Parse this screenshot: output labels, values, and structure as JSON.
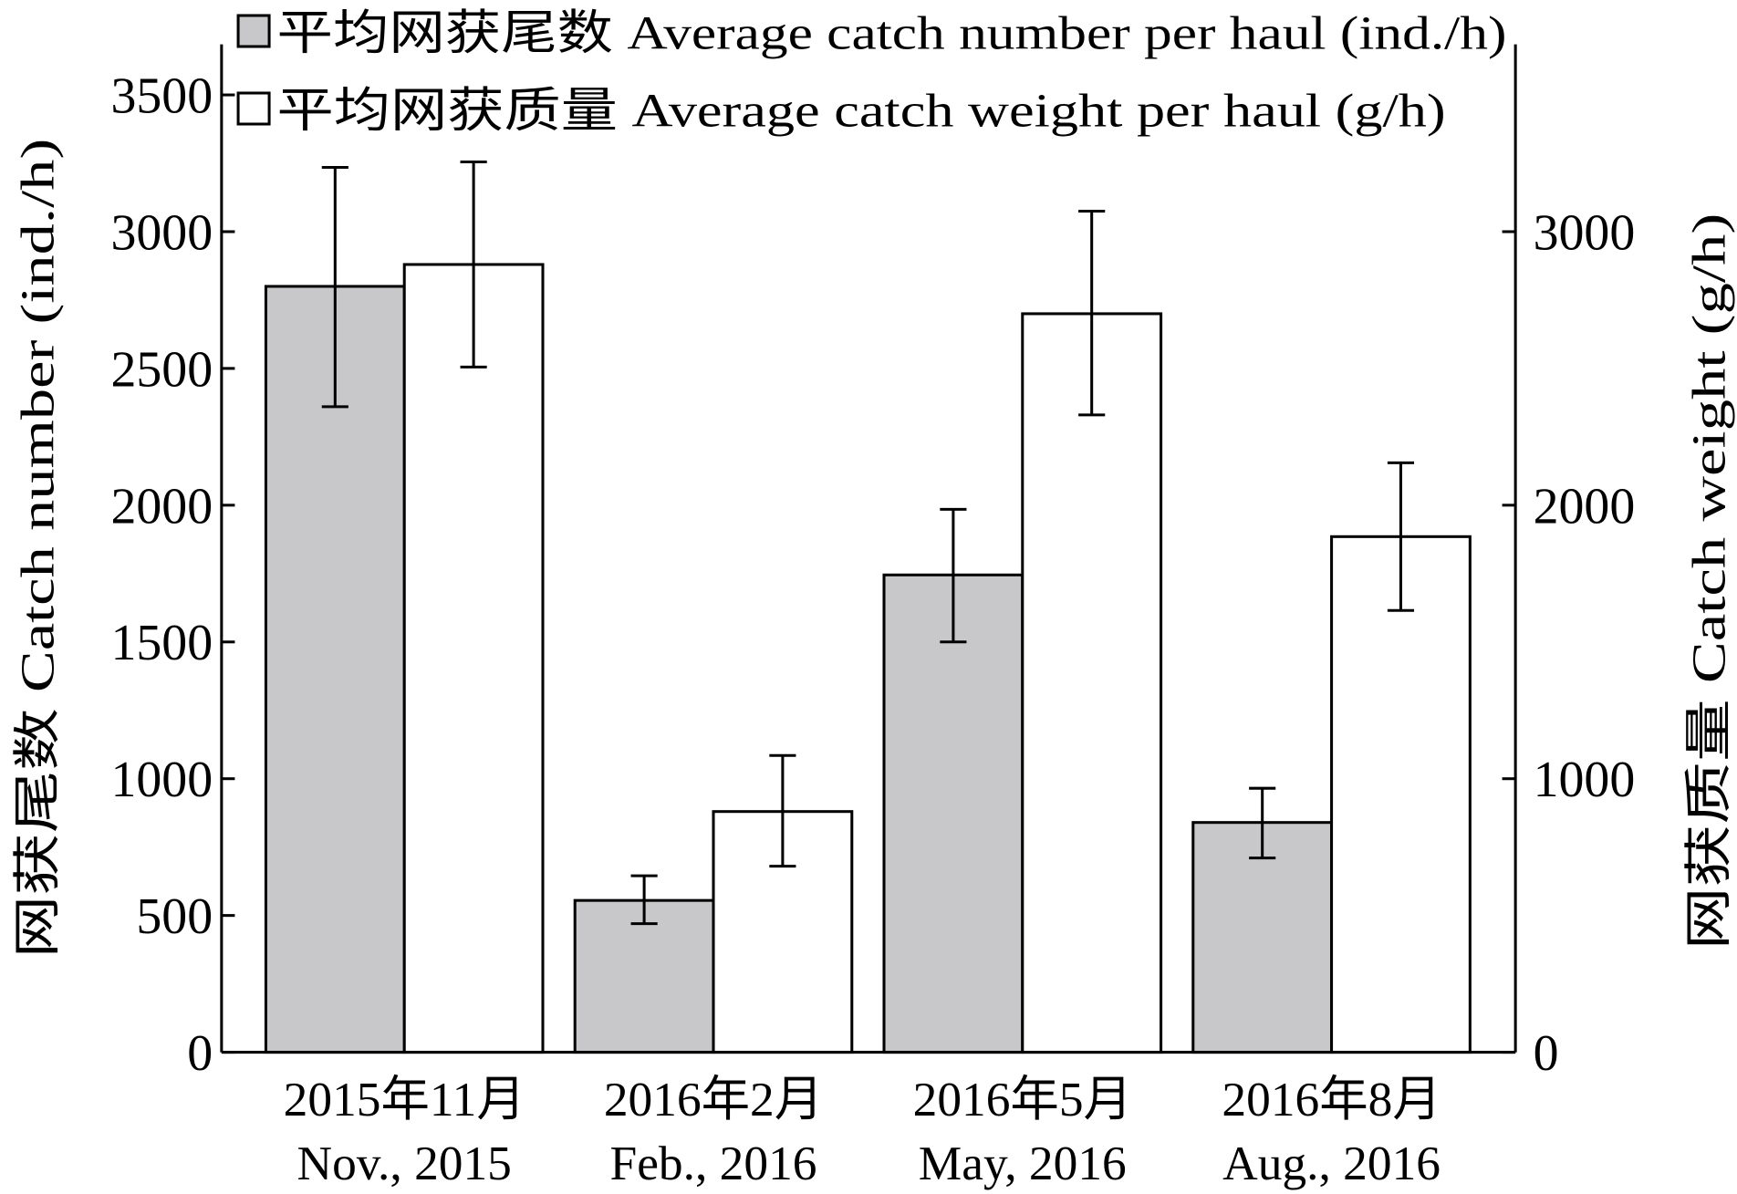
{
  "chart_data": {
    "type": "bar",
    "categories": [
      {
        "cn": "2015年11月",
        "en": "Nov., 2015"
      },
      {
        "cn": "2016年2月",
        "en": "Feb., 2016"
      },
      {
        "cn": "2016年5月",
        "en": "May, 2016"
      },
      {
        "cn": "2016年8月",
        "en": "Aug., 2016"
      }
    ],
    "series": [
      {
        "name": "平均网获尾数 Average catch number per haul (ind./h)",
        "axis": "left",
        "color": "#c8c8ca",
        "values": [
          2800,
          555,
          1745,
          840
        ],
        "err_low": [
          2360,
          470,
          1500,
          710
        ],
        "err_high": [
          3235,
          645,
          1985,
          965
        ]
      },
      {
        "name": "平均网获质量 Average catch weight per haul (g/h)",
        "axis": "right",
        "color": "#ffffff",
        "values": [
          2880,
          880,
          2700,
          1885
        ],
        "err_low": [
          2505,
          680,
          2330,
          1615
        ],
        "err_high": [
          3255,
          1085,
          3075,
          2155
        ]
      }
    ],
    "ylabel": "网获尾数 Catch number (ind./h)",
    "y2label": "网获质量 Catch weight (g/h)",
    "ylim": [
      0,
      3685
    ],
    "y2lim": [
      0,
      3685
    ],
    "yticks": [
      0,
      500,
      1000,
      1500,
      2000,
      2500,
      3000,
      3500
    ],
    "y2ticks": [
      0,
      1000,
      2000,
      3000
    ],
    "legend": "top-left",
    "grid": false
  }
}
